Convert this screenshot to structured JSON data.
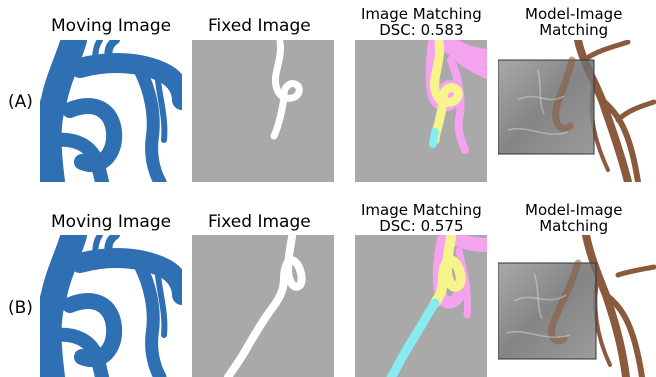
{
  "rows": [
    {
      "label": "(A)",
      "titles": {
        "moving": "Moving Image",
        "fixed": "Fixed Image",
        "matching_line1": "Image Matching",
        "matching_line2": "DSC: 0.583",
        "model_line1": "Model-Image",
        "model_line2": "Matching"
      }
    },
    {
      "label": "(B)",
      "titles": {
        "moving": "Moving Image",
        "fixed": "Fixed Image",
        "matching_line1": "Image Matching",
        "matching_line2": "DSC: 0.575",
        "model_line1": "Model-Image",
        "model_line2": "Matching"
      }
    }
  ],
  "colors": {
    "vessel_blue": "#2f6fb3",
    "fixed_background": "#a9a9a9",
    "fixed_vessel": "#ffffff",
    "overlay_pink": "#f5a3ee",
    "overlay_yellow": "#f7f48c",
    "overlay_cyan": "#86ecef",
    "model_brown": "#8b5a3c",
    "xray_gray": "#7d7d7d"
  }
}
